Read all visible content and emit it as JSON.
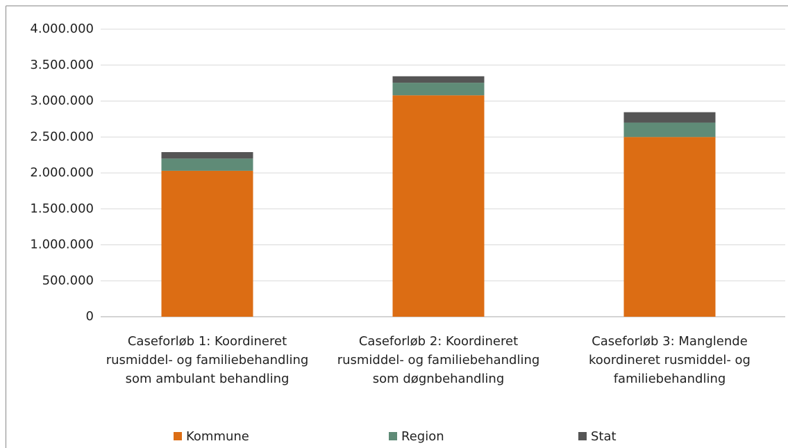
{
  "chart_data": {
    "type": "stacked_bar",
    "categories": [
      "Caseforløb 1: Koordineret rusmiddel- og familiebehandling som ambulant behandling",
      "Caseforløb 2: Koordineret rusmiddel- og familiebehandling som døgnbehandling",
      "Caseforløb 3: Manglende koordineret rusmiddel- og familiebehandling"
    ],
    "series": [
      {
        "name": "Kommune",
        "color": "#dc6d14",
        "values": [
          2030000,
          3080000,
          2500000
        ]
      },
      {
        "name": "Region",
        "color": "#5f8b77",
        "values": [
          170000,
          175000,
          200000
        ]
      },
      {
        "name": "Stat",
        "color": "#555555",
        "values": [
          90000,
          90000,
          145000
        ]
      }
    ],
    "ylim": [
      0,
      4000000
    ],
    "yticks": [
      0,
      {
        "value": 500000,
        "label": "500.000"
      },
      {
        "value": 1000000,
        "label": "1.000.000"
      },
      {
        "value": 1500000,
        "label": "1.500.000"
      },
      {
        "value": 2000000,
        "label": "2.000.000"
      },
      {
        "value": 2500000,
        "label": "2.500.000"
      },
      {
        "value": 3000000,
        "label": "3.000.000"
      },
      {
        "value": 3500000,
        "label": "3.500.000"
      },
      {
        "value": 4000000,
        "label": "4.000.000"
      }
    ],
    "grid": true,
    "legend": "bottom"
  }
}
